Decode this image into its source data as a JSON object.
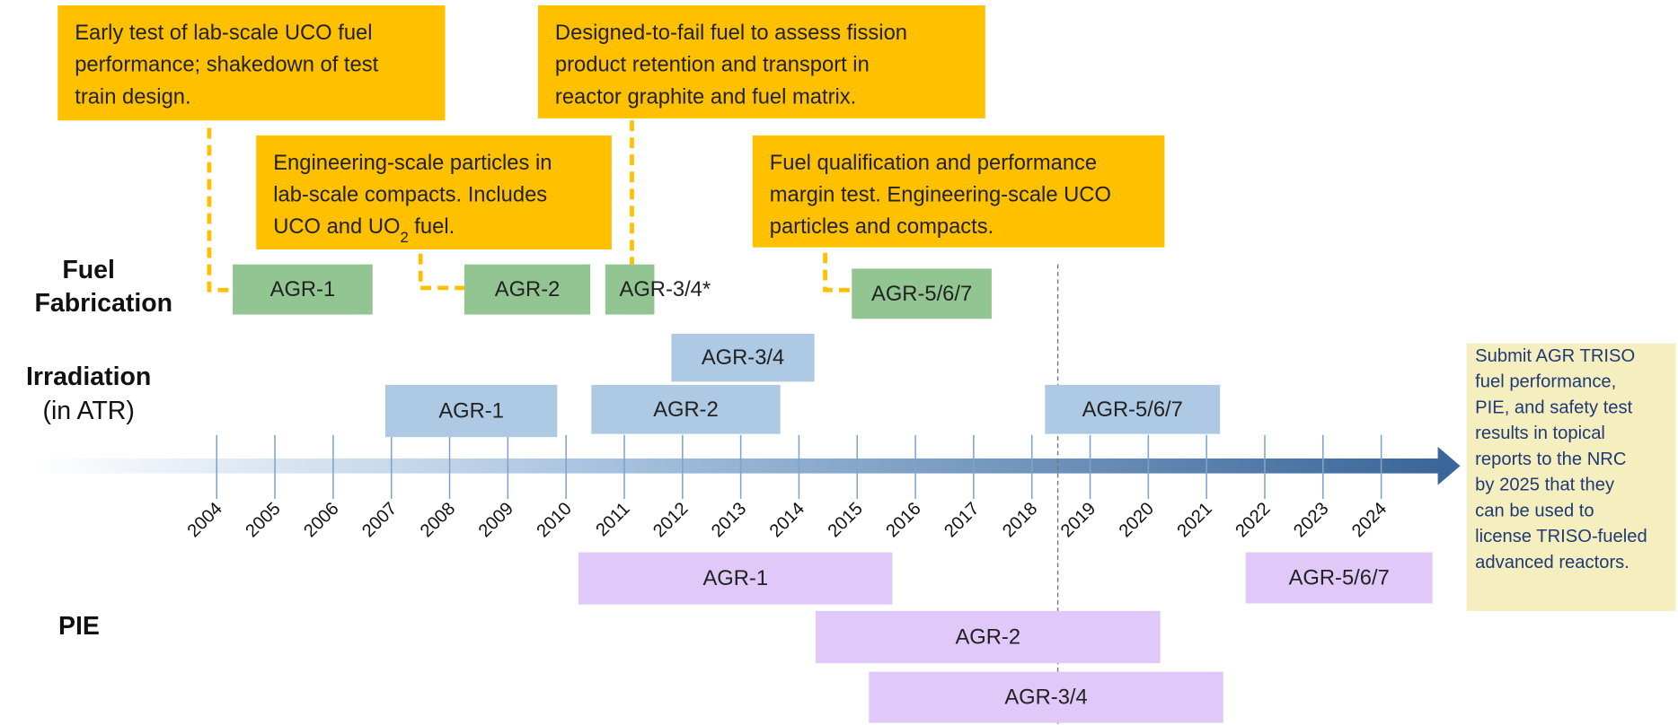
{
  "row_labels": {
    "fuel_fabrication": [
      "Fuel",
      "Fabrication"
    ],
    "irradiation": [
      "Irradiation",
      "(in ATR)"
    ],
    "pie": "PIE"
  },
  "callouts": [
    {
      "lines": [
        "Early test of lab-scale UCO fuel",
        "performance; shakedown of test",
        "train design."
      ]
    },
    {
      "lines": [
        "Engineering-scale particles in",
        "lab-scale compacts. Includes"
      ],
      "last_line": [
        "UCO and UO",
        "2",
        " fuel."
      ]
    },
    {
      "lines": [
        "Designed-to-fail fuel to assess fission",
        "product retention and transport in",
        "reactor graphite and fuel matrix."
      ]
    },
    {
      "lines": [
        "Fuel qualification and performance",
        "margin test. Engineering-scale UCO",
        "particles and compacts."
      ]
    }
  ],
  "fuel_fabrication": [
    "AGR-1",
    "AGR-2",
    "AGR-3/4*",
    "AGR-5/6/7"
  ],
  "irradiation": [
    "AGR-3/4",
    "AGR-1",
    "AGR-2",
    "AGR-5/6/7"
  ],
  "pie": [
    "AGR-1",
    "AGR-5/6/7",
    "AGR-2",
    "AGR-3/4"
  ],
  "years": [
    2004,
    2005,
    2006,
    2007,
    2008,
    2009,
    2010,
    2011,
    2012,
    2013,
    2014,
    2015,
    2016,
    2017,
    2018,
    2019,
    2020,
    2021,
    2022,
    2023,
    2024
  ],
  "note": [
    "Submit AGR TRISO",
    "fuel performance,",
    "PIE, and safety test",
    "results in topical",
    "reports to the NRC",
    "by 2025 that they",
    "can be used to",
    "license TRISO-fueled",
    "advanced reactors."
  ]
}
